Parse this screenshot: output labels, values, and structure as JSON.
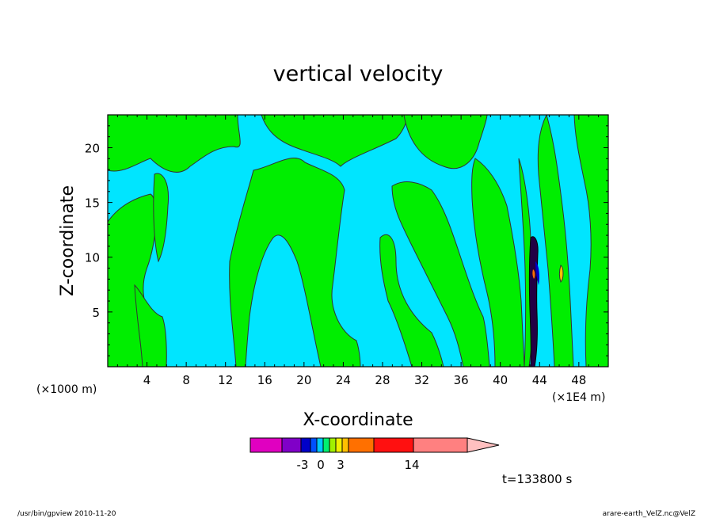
{
  "chart_data": {
    "type": "heatmap",
    "title": "vertical velocity",
    "xlabel": "X-coordinate",
    "ylabel": "Z-coordinate",
    "x_unit_left": "(×1000 m)",
    "x_unit_right": "(×1E4 m)",
    "xlim": [
      0,
      51
    ],
    "ylim": [
      0,
      23
    ],
    "x_ticks": [
      4,
      8,
      12,
      16,
      20,
      24,
      28,
      32,
      36,
      40,
      44,
      48
    ],
    "y_ticks": [
      5,
      10,
      15,
      20
    ],
    "colors": {
      "background_field": "#00e5ff",
      "positive_field": "#00ee00",
      "contour_line": "#333333",
      "frame": "#000000"
    },
    "colorbar": {
      "colors": [
        "#e000c0",
        "#8000c8",
        "#0000c8",
        "#0050ff",
        "#00c8ff",
        "#00f070",
        "#a0f000",
        "#f0f000",
        "#ffc000",
        "#ff7000",
        "#ff1010",
        "#ff8080",
        "#ffc0c0"
      ],
      "tick_labels": [
        {
          "label": "-3",
          "value": -3
        },
        {
          "label": "0",
          "value": 0
        },
        {
          "label": "3",
          "value": 3
        },
        {
          "label": "14",
          "value": 14
        }
      ]
    },
    "time_label": "t=133800 s"
  },
  "footer": {
    "left": "/usr/bin/gpview  2010-11-20",
    "right": "arare-earth_VelZ.nc@VelZ"
  }
}
